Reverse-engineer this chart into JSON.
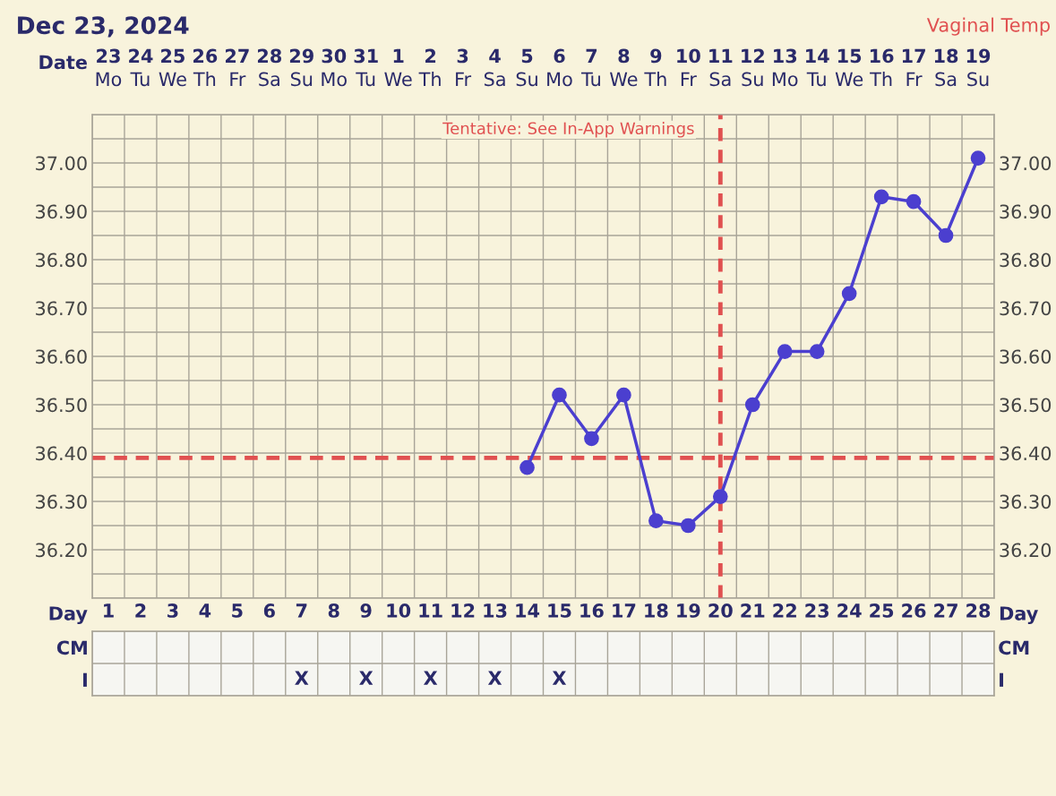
{
  "chart_data": [
    {
      "type": "line",
      "title": "Dec 23, 2024",
      "subtitle": "Vaginal Temp",
      "categories": [
        "1",
        "2",
        "3",
        "4",
        "5",
        "6",
        "7",
        "8",
        "9",
        "10",
        "11",
        "12",
        "13",
        "14",
        "15",
        "16",
        "17",
        "18",
        "19",
        "20",
        "21",
        "22",
        "23",
        "24",
        "25",
        "26",
        "27",
        "28"
      ],
      "tick_labels": "y",
      "series": [
        {
          "color": "#4b3fcf",
          "values": [
            null,
            null,
            null,
            null,
            null,
            null,
            null,
            null,
            null,
            null,
            null,
            null,
            null,
            36.37,
            36.52,
            36.43,
            36.52,
            36.26,
            36.25,
            36.31,
            36.5,
            36.61,
            36.61,
            36.73,
            36.93,
            36.92,
            36.85,
            37.01
          ]
        }
      ],
      "ylim": [
        36.1,
        37.1
      ],
      "yticks": [
        {
          "value": 36.1,
          "label": null
        },
        {
          "value": 36.15,
          "label": null
        },
        {
          "value": 36.2,
          "label": "36.20"
        },
        {
          "value": 36.25,
          "label": null
        },
        {
          "value": 36.3,
          "label": "36.30"
        },
        {
          "value": 36.35,
          "label": null
        },
        {
          "value": 36.4,
          "label": "36.40"
        },
        {
          "value": 36.45,
          "label": null
        },
        {
          "value": 36.5,
          "label": "36.50"
        },
        {
          "value": 36.55,
          "label": null
        },
        {
          "value": 36.6,
          "label": "36.60"
        },
        {
          "value": 36.65,
          "label": null
        },
        {
          "value": 36.7,
          "label": "36.70"
        },
        {
          "value": 36.75,
          "label": null
        },
        {
          "value": 36.8,
          "label": "36.80"
        },
        {
          "value": 36.85,
          "label": null
        },
        {
          "value": 36.9,
          "label": "36.90"
        },
        {
          "value": 36.95,
          "label": null
        },
        {
          "value": 37.0,
          "label": "37.00"
        },
        {
          "value": 37.05,
          "label": null
        },
        {
          "value": 37.1,
          "label": null
        }
      ],
      "y2lim": [
        36.1,
        37.1
      ],
      "y2ticks": [
        {
          "value": 36.2,
          "label": "36.20"
        },
        {
          "value": 36.3,
          "label": "36.30"
        },
        {
          "value": 36.4,
          "label": "36.40"
        },
        {
          "value": 36.5,
          "label": "36.50"
        },
        {
          "value": 36.6,
          "label": "36.60"
        },
        {
          "value": 36.7,
          "label": "36.70"
        },
        {
          "value": 36.8,
          "label": "36.80"
        },
        {
          "value": 36.9,
          "label": "36.90"
        },
        {
          "value": 37.0,
          "label": "37.00"
        }
      ],
      "ref_lines": [
        {
          "axis": "y",
          "value": 36.39,
          "color": "#e05050",
          "line_style": "dashed"
        },
        {
          "axis": "x",
          "value": "20",
          "label": "Tentative: See In-App Warnings",
          "color": "#e05050",
          "line_style": "dashed"
        }
      ],
      "annotations": [
        "Date",
        "23\nMo",
        "24\nTu",
        "25\nWe",
        "26\nTh",
        "27\nFr",
        "28\nSa",
        "29\nSu",
        "30\nMo",
        "31\nTu",
        "1\nWe",
        "2\nTh",
        "3\nFr",
        "4\nSa",
        "5\nSu",
        "6\nMo",
        "7\nTu",
        "8\nWe",
        "9\nTh",
        "10\nFr",
        "11\nSa",
        "12\nSu",
        "13\nMo",
        "14\nTu",
        "15\nWe",
        "16\nTh",
        "17\nFr",
        "18\nSa",
        "19\nSu"
      ],
      "marker": "circle",
      "line_style": "solid",
      "grid": true,
      "legend": false
    },
    {
      "type": "heatmap",
      "xlabel": "Day",
      "categories": [
        "1",
        "2",
        "3",
        "4",
        "5",
        "6",
        "7",
        "8",
        "9",
        "10",
        "11",
        "12",
        "13",
        "14",
        "15",
        "16",
        "17",
        "18",
        "19",
        "20",
        "21",
        "22",
        "23",
        "24",
        "25",
        "26",
        "27",
        "28"
      ],
      "y_categories": [
        "CM",
        "I"
      ],
      "y2_categories": [
        "CM",
        "I"
      ],
      "cells": [
        [
          null,
          null,
          null,
          null,
          null,
          null,
          null,
          null,
          null,
          null,
          null,
          null,
          null,
          null,
          null,
          null,
          null,
          null,
          null,
          null,
          null,
          null,
          null,
          null,
          null,
          null,
          null,
          null
        ],
        [
          null,
          null,
          null,
          null,
          null,
          null,
          null,
          null,
          null,
          null,
          null,
          null,
          null,
          null,
          null,
          null,
          null,
          null,
          null,
          null,
          null,
          null,
          null,
          null,
          null,
          null,
          null,
          null
        ]
      ],
      "cell_labels": [
        [
          null,
          null,
          null,
          null,
          null,
          null,
          null,
          null,
          null,
          null,
          null,
          null,
          null,
          null,
          null,
          null,
          null,
          null,
          null,
          null,
          null,
          null,
          null,
          null,
          null,
          null,
          null,
          null
        ],
        [
          null,
          null,
          null,
          null,
          null,
          null,
          "X",
          null,
          "X",
          null,
          "X",
          null,
          "X",
          null,
          "X",
          null,
          null,
          null,
          null,
          null,
          null,
          null,
          null,
          null,
          null,
          null,
          null,
          null
        ]
      ]
    }
  ]
}
